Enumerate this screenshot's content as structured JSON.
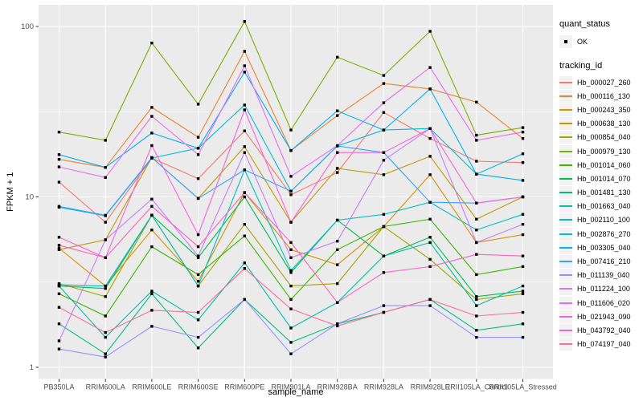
{
  "figure": {
    "panel_background": "#EBEBEB",
    "gridline_color": "#FFFFFF",
    "tick_color": "#333333",
    "tick_text_color": "#4D4D4D",
    "point_color": "#000000"
  },
  "axes": {
    "x_title": "sample_name",
    "y_title": "FPKM + 1",
    "y_tick_labels": [
      "100",
      "10",
      "1"
    ]
  },
  "legend": {
    "quant_status_title": "quant_status",
    "quant_status_items": [
      {
        "label": "OK",
        "marker": "black-point"
      }
    ],
    "tracking_id_title": "tracking_id"
  },
  "chart_data": {
    "type": "line",
    "title": "",
    "xlabel": "sample_name",
    "ylabel": "FPKM + 1",
    "x_categories": [
      "PB350LA",
      "RRIM600LA",
      "RRIM600LE",
      "RRIM600SE",
      "RRIM600PE",
      "RRIM901LA",
      "RRIM928BA",
      "RRIM928LA",
      "RRIM928LE",
      "RRII105LA_Control",
      "RRII105LA_Stressed"
    ],
    "y_scale": "log10",
    "y_ticks": [
      1,
      10,
      100
    ],
    "y_minor_ticks": [
      3.162,
      31.62
    ],
    "ylim_approx": [
      0.9,
      135
    ],
    "grid": true,
    "legend_position": "right",
    "point_marker": "small black square (quant_status = OK)",
    "series": [
      {
        "name": "Hb_000027_260",
        "color": "#F8766D",
        "values": [
          12.2,
          7.1,
          16.9,
          12.8,
          24.4,
          10.3,
          13.9,
          31.3,
          22.0,
          16.2,
          15.9
        ]
      },
      {
        "name": "Hb_000116_130",
        "color": "#EA8331",
        "values": [
          16.6,
          14.9,
          33.5,
          22.4,
          71.5,
          18.7,
          30.0,
          46.3,
          43.0,
          36.0,
          22.0
        ]
      },
      {
        "name": "Hb_000243_350",
        "color": "#D89000",
        "values": [
          5.0,
          3.0,
          6.4,
          3.2,
          10.6,
          4.9,
          4.0,
          6.7,
          13.5,
          5.4,
          6.0
        ]
      },
      {
        "name": "Hb_000638_130",
        "color": "#C09B00",
        "values": [
          4.9,
          5.6,
          17.0,
          9.8,
          19.7,
          7.1,
          14.7,
          13.5,
          17.3,
          7.4,
          10.0
        ]
      },
      {
        "name": "Hb_000854_040",
        "color": "#A3A500",
        "values": [
          3.1,
          2.6,
          7.8,
          3.0,
          6.9,
          3.0,
          3.1,
          6.7,
          4.3,
          2.5,
          2.7
        ]
      },
      {
        "name": "Hb_000979_130",
        "color": "#7CAE00",
        "values": [
          24.0,
          21.5,
          80.0,
          35.0,
          107.0,
          24.7,
          66.0,
          51.6,
          93.7,
          23.0,
          25.5
        ]
      },
      {
        "name": "Hb_001014_060",
        "color": "#39B600",
        "values": [
          2.7,
          2.0,
          5.1,
          3.5,
          5.9,
          2.5,
          4.9,
          6.7,
          7.4,
          3.5,
          3.9
        ]
      },
      {
        "name": "Hb_001014_070",
        "color": "#00BB4E",
        "values": [
          3.0,
          2.9,
          7.8,
          4.4,
          10.0,
          3.6,
          7.3,
          4.5,
          5.8,
          2.6,
          2.8
        ]
      },
      {
        "name": "Hb_001481_130",
        "color": "#00BF7D",
        "values": [
          1.8,
          1.2,
          2.7,
          1.3,
          2.5,
          1.4,
          1.8,
          2.1,
          2.5,
          1.65,
          1.8
        ]
      },
      {
        "name": "Hb_001663_040",
        "color": "#00C1A3",
        "values": [
          3.0,
          1.5,
          2.8,
          1.9,
          4.1,
          1.7,
          2.4,
          4.5,
          5.4,
          2.3,
          3.0
        ]
      },
      {
        "name": "Hb_002110_100",
        "color": "#00BFC4",
        "values": [
          3.05,
          3.0,
          7.8,
          3.0,
          14.4,
          3.7,
          7.3,
          7.9,
          9.3,
          6.4,
          7.9
        ]
      },
      {
        "name": "Hb_002876_270",
        "color": "#00BAE0",
        "values": [
          8.7,
          7.75,
          16.9,
          19.3,
          34.6,
          10.8,
          19.9,
          24.7,
          25.2,
          13.6,
          17.9
        ]
      },
      {
        "name": "Hb_003305_040",
        "color": "#00B0F6",
        "values": [
          17.7,
          14.9,
          23.7,
          19.3,
          54.0,
          18.7,
          32.0,
          24.7,
          43.0,
          13.6,
          12.5
        ]
      },
      {
        "name": "Hb_007416_210",
        "color": "#35A2FF",
        "values": [
          8.8,
          7.8,
          17.0,
          9.8,
          14.4,
          10.8,
          19.9,
          18.2,
          9.3,
          9.2,
          10.0
        ]
      },
      {
        "name": "Hb_011139_040",
        "color": "#9590FF",
        "values": [
          1.28,
          1.15,
          1.74,
          1.5,
          2.5,
          1.2,
          1.8,
          2.3,
          2.3,
          1.5,
          1.5
        ]
      },
      {
        "name": "Hb_011224_100",
        "color": "#C77CFF",
        "values": [
          1.43,
          5.6,
          9.7,
          4.5,
          18.2,
          4.4,
          5.5,
          16.4,
          25.2,
          5.4,
          6.9
        ]
      },
      {
        "name": "Hb_011606_020",
        "color": "#E76BF3",
        "values": [
          15.0,
          13.0,
          29.7,
          17.7,
          58.8,
          13.2,
          20.0,
          35.7,
          57.5,
          21.5,
          24.0
        ]
      },
      {
        "name": "Hb_021943_090",
        "color": "#FA62DB",
        "values": [
          5.8,
          4.4,
          20.0,
          6.0,
          32.4,
          7.1,
          18.2,
          18.2,
          25.2,
          9.2,
          10.0
        ]
      },
      {
        "name": "Hb_043792_040",
        "color": "#FF62BC",
        "values": [
          5.2,
          4.4,
          8.8,
          5.1,
          10.6,
          5.4,
          2.4,
          3.6,
          3.9,
          4.6,
          4.5
        ]
      },
      {
        "name": "Hb_074197_040",
        "color": "#FF6A98",
        "values": [
          2.25,
          1.6,
          2.16,
          2.1,
          3.8,
          2.2,
          1.75,
          2.1,
          2.5,
          2.0,
          2.1
        ]
      }
    ]
  }
}
